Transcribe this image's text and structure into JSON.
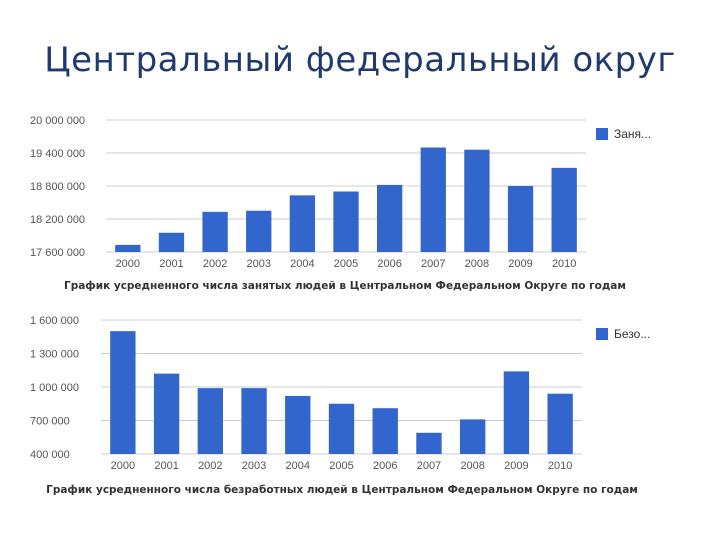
{
  "slide": {
    "title": "Центральный федеральный округ"
  },
  "colors": {
    "bar": "#3366cc",
    "grid": "#cccccc",
    "title": "#1f3a6e"
  },
  "chart_data": [
    {
      "type": "bar",
      "title": "График усредненного числа занятых людей в Центральном Федеральном Округе по годам",
      "legend": {
        "label": "Заня...",
        "position": "right"
      },
      "categories": [
        "2000",
        "2001",
        "2002",
        "2003",
        "2004",
        "2005",
        "2006",
        "2007",
        "2008",
        "2009",
        "2010"
      ],
      "series": [
        {
          "name": "Заня...",
          "values": [
            17730000,
            17950000,
            18330000,
            18350000,
            18630000,
            18700000,
            18820000,
            19500000,
            19460000,
            18800000,
            19130000
          ]
        }
      ],
      "ylim": [
        17600000,
        20000000
      ],
      "yticks": [
        17600000,
        18200000,
        18800000,
        19400000,
        20000000
      ],
      "ytick_labels": [
        "17 600 000",
        "18 200 000",
        "18 800 000",
        "19 400 000",
        "20 000 000"
      ],
      "grid": true
    },
    {
      "type": "bar",
      "title": "График усредненного числа безработных людей в Центральном Федеральном Округе по годам",
      "legend": {
        "label": "Безо...",
        "position": "right"
      },
      "categories": [
        "2000",
        "2001",
        "2002",
        "2003",
        "2004",
        "2005",
        "2006",
        "2007",
        "2008",
        "2009",
        "2010"
      ],
      "series": [
        {
          "name": "Безо...",
          "values": [
            1500000,
            1120000,
            990000,
            990000,
            920000,
            850000,
            810000,
            590000,
            710000,
            1140000,
            940000
          ]
        }
      ],
      "ylim": [
        400000,
        1600000
      ],
      "yticks": [
        400000,
        700000,
        1000000,
        1300000,
        1600000
      ],
      "ytick_labels": [
        "400 000",
        "700 000",
        "1 000 000",
        "1 300 000",
        "1 600 000"
      ],
      "grid": true
    }
  ]
}
